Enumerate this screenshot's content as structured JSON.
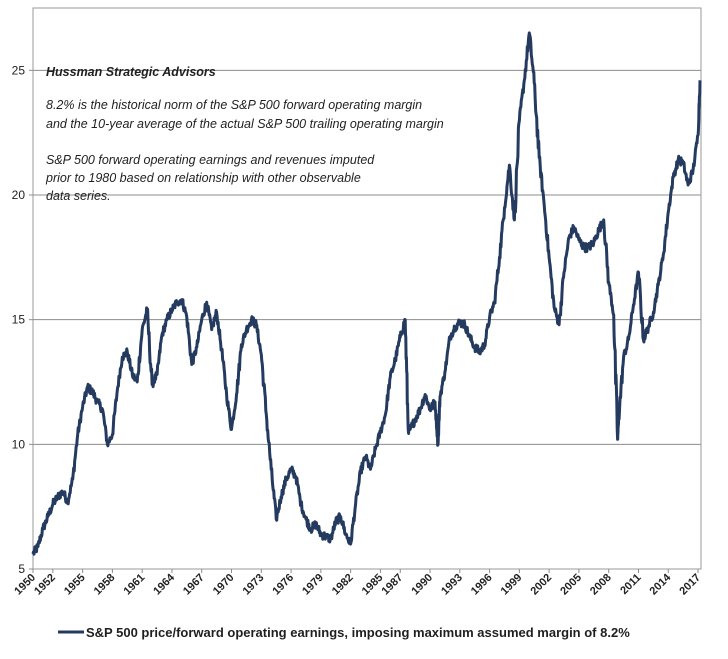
{
  "chart_data": {
    "type": "line",
    "title": "",
    "xlabel": "",
    "ylabel": "",
    "ylim": [
      5,
      27.5
    ],
    "xlim": [
      1950,
      2017.3
    ],
    "grid": "horizontal",
    "y_ticks": [
      "5",
      "10",
      "15",
      "20",
      "25"
    ],
    "x_ticks": [
      "1950",
      "1952",
      "1955",
      "1958",
      "1961",
      "1964",
      "1967",
      "1970",
      "1973",
      "1976",
      "1979",
      "1982",
      "1985",
      "1987",
      "1990",
      "1993",
      "1996",
      "1999",
      "2002",
      "2005",
      "2008",
      "2011",
      "2014",
      "2017"
    ],
    "annotations": {
      "source": "Hussman Strategic Advisors",
      "note1_line1": "8.2% is the historical norm of the S&P 500 forward operating margin",
      "note1_line2": "and the 10-year average of the actual S&P 500 trailing operating margin",
      "note2_line1": "S&P 500 forward operating earnings and revenues imputed",
      "note2_line2": "prior to 1980 based on relationship with other observable",
      "note2_line3": "data series."
    },
    "legend": {
      "position": "bottom",
      "label": "S&P 500 price/forward operating earnings, imposing maximum assumed margin of 8.2%"
    },
    "series": [
      {
        "name": "S&P 500 price/forward operating earnings, imposing maximum assumed margin of 8.2%",
        "color": "#243a5e",
        "x": [
          1950.0,
          1950.5,
          1951.0,
          1951.5,
          1952.0,
          1952.5,
          1953.0,
          1953.5,
          1954.0,
          1954.5,
          1955.0,
          1955.5,
          1956.0,
          1956.5,
          1957.0,
          1957.5,
          1958.0,
          1958.5,
          1959.0,
          1959.5,
          1960.0,
          1960.5,
          1961.0,
          1961.5,
          1962.0,
          1962.5,
          1963.0,
          1963.5,
          1964.0,
          1964.5,
          1965.0,
          1965.5,
          1966.0,
          1966.5,
          1967.0,
          1967.5,
          1968.0,
          1968.5,
          1969.0,
          1969.5,
          1970.0,
          1970.5,
          1971.0,
          1971.5,
          1972.0,
          1972.5,
          1973.0,
          1973.5,
          1974.0,
          1974.5,
          1975.0,
          1975.5,
          1976.0,
          1976.5,
          1977.0,
          1977.5,
          1978.0,
          1978.5,
          1979.0,
          1979.5,
          1980.0,
          1980.5,
          1981.0,
          1981.5,
          1982.0,
          1982.5,
          1983.0,
          1983.5,
          1984.0,
          1984.5,
          1985.0,
          1985.5,
          1986.0,
          1986.5,
          1987.0,
          1987.5,
          1987.8,
          1988.0,
          1988.5,
          1989.0,
          1989.5,
          1990.0,
          1990.5,
          1990.8,
          1991.0,
          1991.5,
          1992.0,
          1992.5,
          1993.0,
          1993.5,
          1994.0,
          1994.5,
          1995.0,
          1995.5,
          1996.0,
          1996.5,
          1997.0,
          1997.5,
          1998.0,
          1998.5,
          1999.0,
          1999.5,
          2000.0,
          2000.5,
          2001.0,
          2001.5,
          2002.0,
          2002.5,
          2003.0,
          2003.5,
          2004.0,
          2004.5,
          2005.0,
          2005.5,
          2006.0,
          2006.5,
          2007.0,
          2007.5,
          2008.0,
          2008.5,
          2008.9,
          2009.0,
          2009.5,
          2010.0,
          2010.5,
          2011.0,
          2011.5,
          2012.0,
          2012.5,
          2013.0,
          2013.5,
          2014.0,
          2014.5,
          2015.0,
          2015.5,
          2016.0,
          2016.5,
          2017.0,
          2017.2
        ],
        "y": [
          5.6,
          5.9,
          6.6,
          7.1,
          7.6,
          7.9,
          8.1,
          7.7,
          8.6,
          10.4,
          11.5,
          12.3,
          12.1,
          11.7,
          11.4,
          10.0,
          10.4,
          12.2,
          13.5,
          13.7,
          12.8,
          12.5,
          14.6,
          15.4,
          12.4,
          12.8,
          14.4,
          15.0,
          15.4,
          15.7,
          15.8,
          15.1,
          13.2,
          13.9,
          15.0,
          15.7,
          14.6,
          15.3,
          13.8,
          12.0,
          10.6,
          12.0,
          14.0,
          14.6,
          15.0,
          14.8,
          13.6,
          11.2,
          9.0,
          7.0,
          7.9,
          8.6,
          9.0,
          8.7,
          7.6,
          7.0,
          6.6,
          6.8,
          6.4,
          6.3,
          6.2,
          6.9,
          7.1,
          6.4,
          6.0,
          7.6,
          8.9,
          9.5,
          9.0,
          9.8,
          10.5,
          11.2,
          12.7,
          13.4,
          14.3,
          15.0,
          10.6,
          10.6,
          11.0,
          11.4,
          12.0,
          11.4,
          11.7,
          10.0,
          11.9,
          12.9,
          14.3,
          14.7,
          14.9,
          14.8,
          14.3,
          13.9,
          13.7,
          14.0,
          15.1,
          15.7,
          17.5,
          19.5,
          21.2,
          19.0,
          23.0,
          24.6,
          26.5,
          24.5,
          21.5,
          19.6,
          17.5,
          15.5,
          14.8,
          16.9,
          18.3,
          18.7,
          18.2,
          17.9,
          17.9,
          18.1,
          18.6,
          19.0,
          16.5,
          15.2,
          10.2,
          11.0,
          13.5,
          14.2,
          15.6,
          16.9,
          14.2,
          14.7,
          15.3,
          16.4,
          17.6,
          19.3,
          20.7,
          21.4,
          21.3,
          20.4,
          21.0,
          22.4,
          24.6
        ]
      }
    ]
  }
}
